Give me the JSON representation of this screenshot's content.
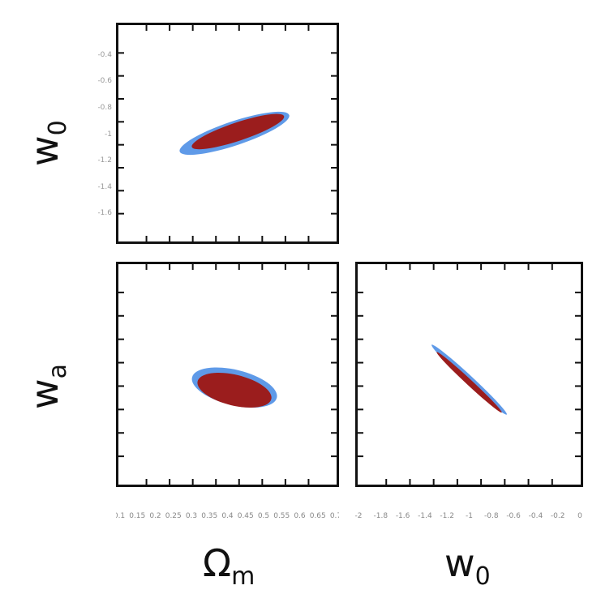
{
  "chart_data": [
    {
      "type": "contour",
      "panel": "top-left",
      "xlabel": "",
      "ylabel": "w",
      "ylabel_sub": "0",
      "xlim": [
        0.1,
        0.7
      ],
      "ylim": [
        -1.6,
        -0.4
      ],
      "ytick_labels": [
        "-0.4",
        "-0.6",
        "-0.8",
        "-1",
        "-1.2",
        "-1.4",
        "-1.6"
      ],
      "regions": [
        {
          "level": "outer",
          "color": "#5f9ae8",
          "center": [
            0.42,
            -1.0
          ],
          "semi_major": 0.19,
          "semi_minor": 0.05,
          "angle_deg": 34
        },
        {
          "level": "inner",
          "color": "#9b1d1d",
          "center": [
            0.43,
            -0.99
          ],
          "semi_major": 0.16,
          "semi_minor": 0.038,
          "angle_deg": 34
        }
      ]
    },
    {
      "type": "contour",
      "panel": "bottom-left",
      "xlabel": "Ω",
      "xlabel_sub": "m",
      "ylabel": "w",
      "ylabel_sub": "a",
      "xlim": [
        0.1,
        0.7
      ],
      "ylim": [
        -2.0,
        2.0
      ],
      "xtick_labels": [
        "0.1",
        "0.15",
        "0.2",
        "0.25",
        "0.3",
        "0.35",
        "0.4",
        "0.45",
        "0.5",
        "0.55",
        "0.6",
        "0.65",
        "0.7"
      ],
      "regions": [
        {
          "level": "outer",
          "color": "#5f9ae8",
          "center": [
            0.42,
            -0.25
          ],
          "semi_major": 0.23,
          "semi_minor": 0.06,
          "angle_deg": -58
        },
        {
          "level": "inner",
          "color": "#9b1d1d",
          "center": [
            0.42,
            -0.3
          ],
          "semi_major": 0.2,
          "semi_minor": 0.052,
          "angle_deg": -58
        }
      ]
    },
    {
      "type": "contour",
      "panel": "bottom-right",
      "xlabel": "w",
      "xlabel_sub": "0",
      "ylabel": "",
      "xlim": [
        -2.0,
        0.0
      ],
      "ylim": [
        -2.0,
        2.0
      ],
      "xtick_labels": [
        "-2",
        "-1.8",
        "-1.6",
        "-1.4",
        "-1.2",
        "-1",
        "-0.8",
        "-0.6",
        "-0.4",
        "-0.2",
        "0"
      ],
      "regions": [
        {
          "level": "outer",
          "color": "#5f9ae8",
          "center": [
            -1.0,
            -0.1
          ],
          "semi_major": 0.75,
          "semi_minor": 0.04,
          "angle_deg": -62
        },
        {
          "level": "inner",
          "color": "#9b1d1d",
          "center": [
            -1.0,
            -0.15
          ],
          "semi_major": 0.65,
          "semi_minor": 0.03,
          "angle_deg": -62
        }
      ]
    }
  ],
  "labels": {
    "ylabel_top_main": "w",
    "ylabel_top_sub": "0",
    "ylabel_bl_main": "w",
    "ylabel_bl_sub": "a",
    "xlabel_bl_main": "Ω",
    "xlabel_bl_sub": "m",
    "xlabel_br_main": "w",
    "xlabel_br_sub": "0"
  }
}
